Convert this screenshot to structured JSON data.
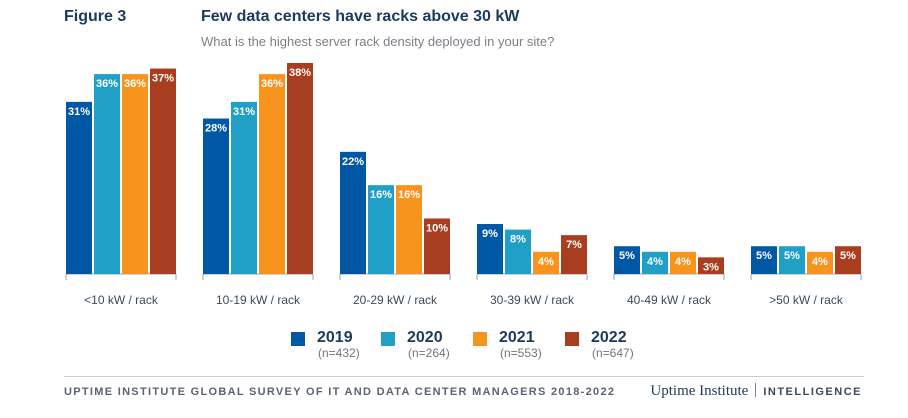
{
  "figure_label": "Figure 3",
  "title": "Few data centers have racks above 30 kW",
  "subtitle": "What is the highest server rack density deployed in your site?",
  "chart_data": {
    "type": "bar",
    "categories": [
      "<10 kW / rack",
      "10-19 kW / rack",
      "20-29 kW / rack",
      "30-39 kW / rack",
      "40-49 kW / rack",
      ">50 kW / rack"
    ],
    "series": [
      {
        "name": "2019",
        "n": "(n=432)",
        "color": "#0057a3",
        "values": [
          31,
          28,
          22,
          9,
          5,
          5
        ]
      },
      {
        "name": "2020",
        "n": "(n=264)",
        "color": "#21a0c7",
        "values": [
          36,
          31,
          16,
          8,
          4,
          5
        ]
      },
      {
        "name": "2021",
        "n": "(n=553)",
        "color": "#f7941d",
        "values": [
          36,
          36,
          16,
          4,
          4,
          4
        ]
      },
      {
        "name": "2022",
        "n": "(n=647)",
        "color": "#a83d1f",
        "values": [
          37,
          38,
          10,
          7,
          3,
          5
        ]
      }
    ],
    "value_suffix": "%",
    "ylim": [
      0,
      38
    ],
    "grid": false,
    "legend": "bottom"
  },
  "footer": {
    "source": "UPTIME INSTITUTE GLOBAL SURVEY OF IT AND DATA CENTER MANAGERS 2018-2022",
    "brand_name": "Uptime Institute",
    "brand_unit": "INTELLIGENCE"
  }
}
